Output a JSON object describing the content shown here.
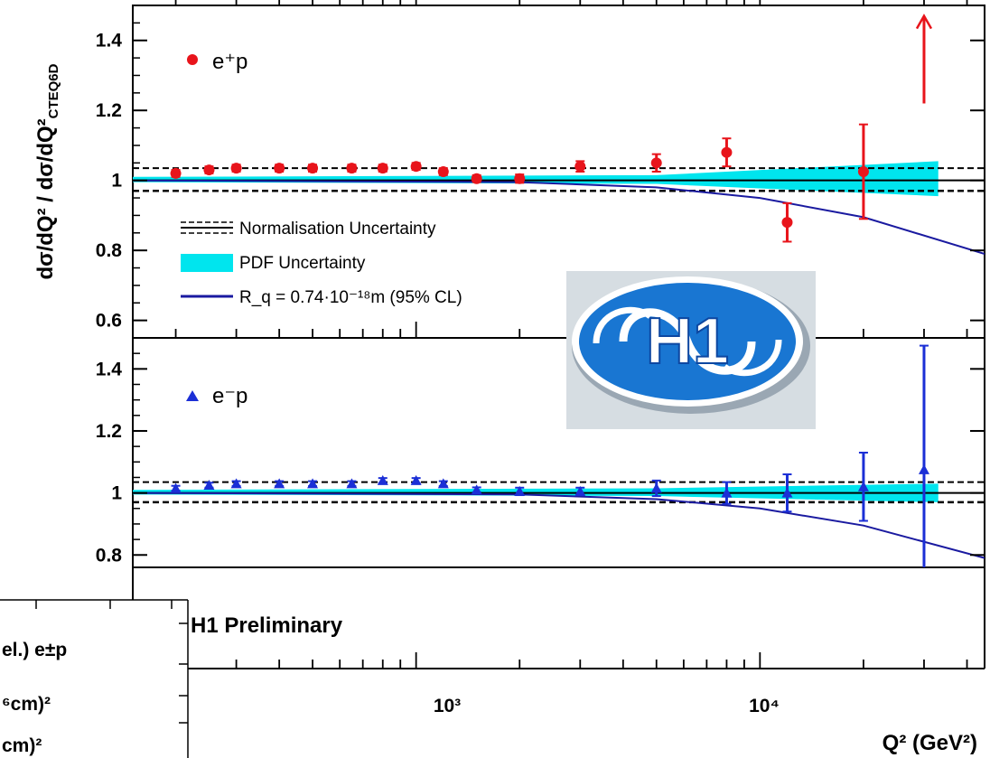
{
  "colors": {
    "positron": "#e8141b",
    "electron": "#1b2fd6",
    "pdf_band": "#00e5ee",
    "model_curve": "#1a1aa0",
    "logo_blue": "#1976d2",
    "logo_bg": "#cfd8dc"
  },
  "figure": {
    "y_axis_label": "dσ/dQ² / dσ/dQ²",
    "y_axis_label_sub": "CTEQ6D",
    "x_axis_label": "Q² (GeV²)",
    "x_tick_labels": [
      "10³",
      "10⁴"
    ],
    "watermark_text": "H1 Preliminary",
    "overlay_lines": [
      "el.) e±p",
      "⁶cm)²",
      "cm)²"
    ],
    "logo_text": "H1",
    "logo_icon": "h1-collaboration-logo"
  },
  "legend": {
    "normalisation": "Normalisation Uncertainty",
    "pdf": "PDF Uncertainty",
    "model": "R_q = 0.74·10⁻¹⁸m (95% CL)"
  },
  "chart_data": [
    {
      "type": "scatter",
      "panel": "top",
      "series_label": "e⁺p",
      "x_scale": "log",
      "xlim": [
        150,
        45000
      ],
      "ylim": [
        0.55,
        1.5
      ],
      "y_tick_labels": [
        "0.6",
        "0.8",
        "1",
        "1.2",
        "1.4"
      ],
      "y_ticks": [
        0.6,
        0.8,
        1.0,
        1.2,
        1.4
      ],
      "normalisation_band": [
        0.97,
        1.035
      ],
      "pdf_band": {
        "x": [
          150,
          5000,
          33000
        ],
        "lo": [
          0.995,
          0.99,
          0.955
        ],
        "hi": [
          1.01,
          1.015,
          1.055
        ]
      },
      "model_curve": {
        "x": [
          150,
          2000,
          5000,
          10000,
          20000,
          45000
        ],
        "y": [
          1.0,
          0.995,
          0.98,
          0.95,
          0.895,
          0.79
        ]
      },
      "points": [
        {
          "x": 200,
          "y": 1.02,
          "err": 0.01
        },
        {
          "x": 250,
          "y": 1.03,
          "err": 0.01
        },
        {
          "x": 300,
          "y": 1.035,
          "err": 0.01
        },
        {
          "x": 400,
          "y": 1.035,
          "err": 0.01
        },
        {
          "x": 500,
          "y": 1.035,
          "err": 0.01
        },
        {
          "x": 650,
          "y": 1.035,
          "err": 0.01
        },
        {
          "x": 800,
          "y": 1.035,
          "err": 0.01
        },
        {
          "x": 1000,
          "y": 1.04,
          "err": 0.01
        },
        {
          "x": 1200,
          "y": 1.025,
          "err": 0.01
        },
        {
          "x": 1500,
          "y": 1.005,
          "err": 0.01
        },
        {
          "x": 2000,
          "y": 1.005,
          "err": 0.012
        },
        {
          "x": 3000,
          "y": 1.04,
          "err": 0.015
        },
        {
          "x": 5000,
          "y": 1.05,
          "err": 0.025
        },
        {
          "x": 8000,
          "y": 1.08,
          "err": 0.04
        },
        {
          "x": 12000,
          "y": 0.88,
          "err": 0.055
        },
        {
          "x": 20000,
          "y": 1.025,
          "err": 0.135
        }
      ],
      "arrow_point": {
        "x": 30000,
        "y_from": 1.22,
        "y_to": 1.47
      }
    },
    {
      "type": "scatter",
      "panel": "bottom",
      "series_label": "e⁻p",
      "x_scale": "log",
      "xlim": [
        150,
        45000
      ],
      "ylim": [
        0.76,
        1.5
      ],
      "y_tick_labels": [
        "0.8",
        "1",
        "1.2",
        "1.4"
      ],
      "y_ticks": [
        0.8,
        1.0,
        1.2,
        1.4
      ],
      "normalisation_band": [
        0.97,
        1.035
      ],
      "pdf_band": {
        "x": [
          150,
          5000,
          33000
        ],
        "lo": [
          0.995,
          0.99,
          0.97
        ],
        "hi": [
          1.01,
          1.015,
          1.03
        ]
      },
      "model_curve": {
        "x": [
          150,
          2000,
          5000,
          10000,
          20000,
          45000
        ],
        "y": [
          1.0,
          0.995,
          0.98,
          0.95,
          0.895,
          0.79
        ]
      },
      "points": [
        {
          "x": 200,
          "y": 1.015,
          "err": 0.008
        },
        {
          "x": 250,
          "y": 1.025,
          "err": 0.008
        },
        {
          "x": 300,
          "y": 1.03,
          "err": 0.008
        },
        {
          "x": 400,
          "y": 1.03,
          "err": 0.008
        },
        {
          "x": 500,
          "y": 1.03,
          "err": 0.008
        },
        {
          "x": 650,
          "y": 1.03,
          "err": 0.008
        },
        {
          "x": 800,
          "y": 1.04,
          "err": 0.008
        },
        {
          "x": 1000,
          "y": 1.04,
          "err": 0.008
        },
        {
          "x": 1200,
          "y": 1.03,
          "err": 0.008
        },
        {
          "x": 1500,
          "y": 1.01,
          "err": 0.008
        },
        {
          "x": 2000,
          "y": 1.005,
          "err": 0.012
        },
        {
          "x": 3000,
          "y": 1.005,
          "err": 0.012
        },
        {
          "x": 5000,
          "y": 1.015,
          "err": 0.025
        },
        {
          "x": 8000,
          "y": 1.0,
          "err": 0.035
        },
        {
          "x": 12000,
          "y": 1.0,
          "err": 0.06
        },
        {
          "x": 20000,
          "y": 1.02,
          "err": 0.11
        },
        {
          "x": 30000,
          "y": 1.075,
          "err": 0.4
        }
      ]
    }
  ]
}
